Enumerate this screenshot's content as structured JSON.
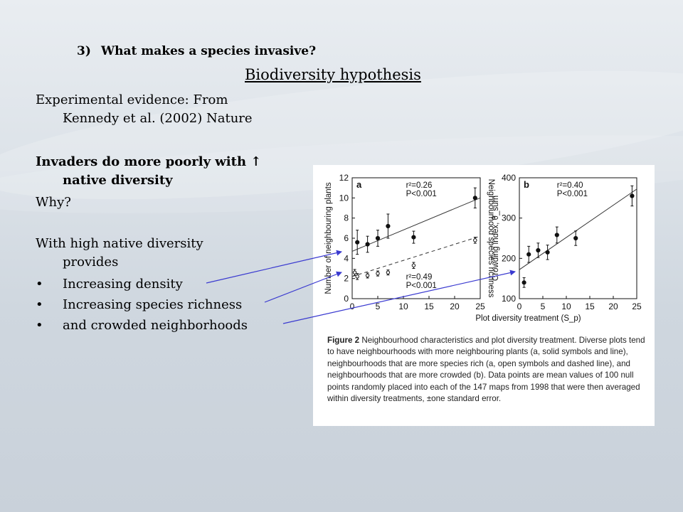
{
  "slide": {
    "heading_number": "3)",
    "heading_text": "What makes a species invasive?",
    "subtitle": "Biodiversity hypothesis",
    "evidence_line1": "Experimental evidence: From",
    "evidence_line2": "Kennedy et al. (2002) Nature",
    "claim_line1": "Invaders do more poorly with ↑",
    "claim_line2": "native diversity",
    "why": "Why?",
    "provides_line1": "With high native diversity",
    "provides_line2": "provides",
    "bullets": [
      "Increasing density",
      "Increasing species richness",
      "and crowded neighborhoods"
    ],
    "arrow_color": "#3a3ad0"
  },
  "figure": {
    "caption_label": "Figure 2",
    "caption_text": " Neighbourhood characteristics and plot diversity treatment. Diverse plots tend to have neighbourhoods with more neighbouring plants (a, solid symbols and line), neighbourhoods that are more species rich (a, open symbols and dashed line), and neighbourhoods that are more crowded (b). Data points are mean values of 100 null points randomly placed into each of the 147 maps from 1998 that were then averaged within diversity treatments, ±one standard error."
  },
  "chart_data": [
    {
      "type": "scatter",
      "panel_label": "a",
      "xlabel": "",
      "ylabel": "Number of neighbouring plants",
      "ylabel_right": "Neighbourhood species richness",
      "xlim": [
        0,
        25
      ],
      "ylim": [
        0,
        12
      ],
      "x_ticks": [
        "0",
        "5",
        "10",
        "15",
        "20",
        "25"
      ],
      "y_ticks": [
        "0",
        "2",
        "4",
        "6",
        "8",
        "10",
        "12"
      ],
      "series": [
        {
          "style": "solid",
          "x": [
            1,
            3,
            5,
            7,
            12,
            24
          ],
          "y": [
            5.6,
            5.4,
            6.0,
            7.2,
            6.1,
            10.0
          ],
          "err": [
            1.2,
            0.8,
            0.8,
            1.2,
            0.6,
            1.0
          ],
          "fit": [
            [
              0,
              4.7
            ],
            [
              25,
              10.0
            ]
          ],
          "annotation": [
            "r²=0.26",
            "P<0.001"
          ]
        },
        {
          "style": "dashed",
          "x": [
            0.5,
            1,
            3,
            5,
            7,
            12,
            24
          ],
          "y": [
            2.6,
            2.2,
            2.3,
            2.5,
            2.6,
            3.3,
            5.8
          ],
          "err": [
            0.3,
            0.3,
            0.25,
            0.25,
            0.25,
            0.3,
            0.3
          ],
          "fit": [
            [
              0,
              2.2
            ],
            [
              25,
              6.2
            ]
          ],
          "annotation": [
            "r²=0.49",
            "P<0.001"
          ]
        }
      ]
    },
    {
      "type": "scatter",
      "panel_label": "b",
      "xlabel": "Plot diversity treatment (S_p)",
      "ylabel": "Crowding index, θ_sum",
      "xlim": [
        0,
        25
      ],
      "ylim": [
        100,
        400
      ],
      "x_ticks": [
        "0",
        "5",
        "10",
        "15",
        "20",
        "25"
      ],
      "y_ticks": [
        "100",
        "200",
        "300",
        "400"
      ],
      "series": [
        {
          "style": "solid",
          "x": [
            1,
            2,
            4,
            6,
            8,
            12,
            24
          ],
          "y": [
            140,
            210,
            220,
            215,
            258,
            250,
            355
          ],
          "err": [
            12,
            20,
            18,
            18,
            20,
            18,
            25
          ],
          "fit": [
            [
              0,
              172
            ],
            [
              25,
              372
            ]
          ],
          "annotation": [
            "r²=0.40",
            "P<0.001"
          ]
        }
      ]
    }
  ]
}
